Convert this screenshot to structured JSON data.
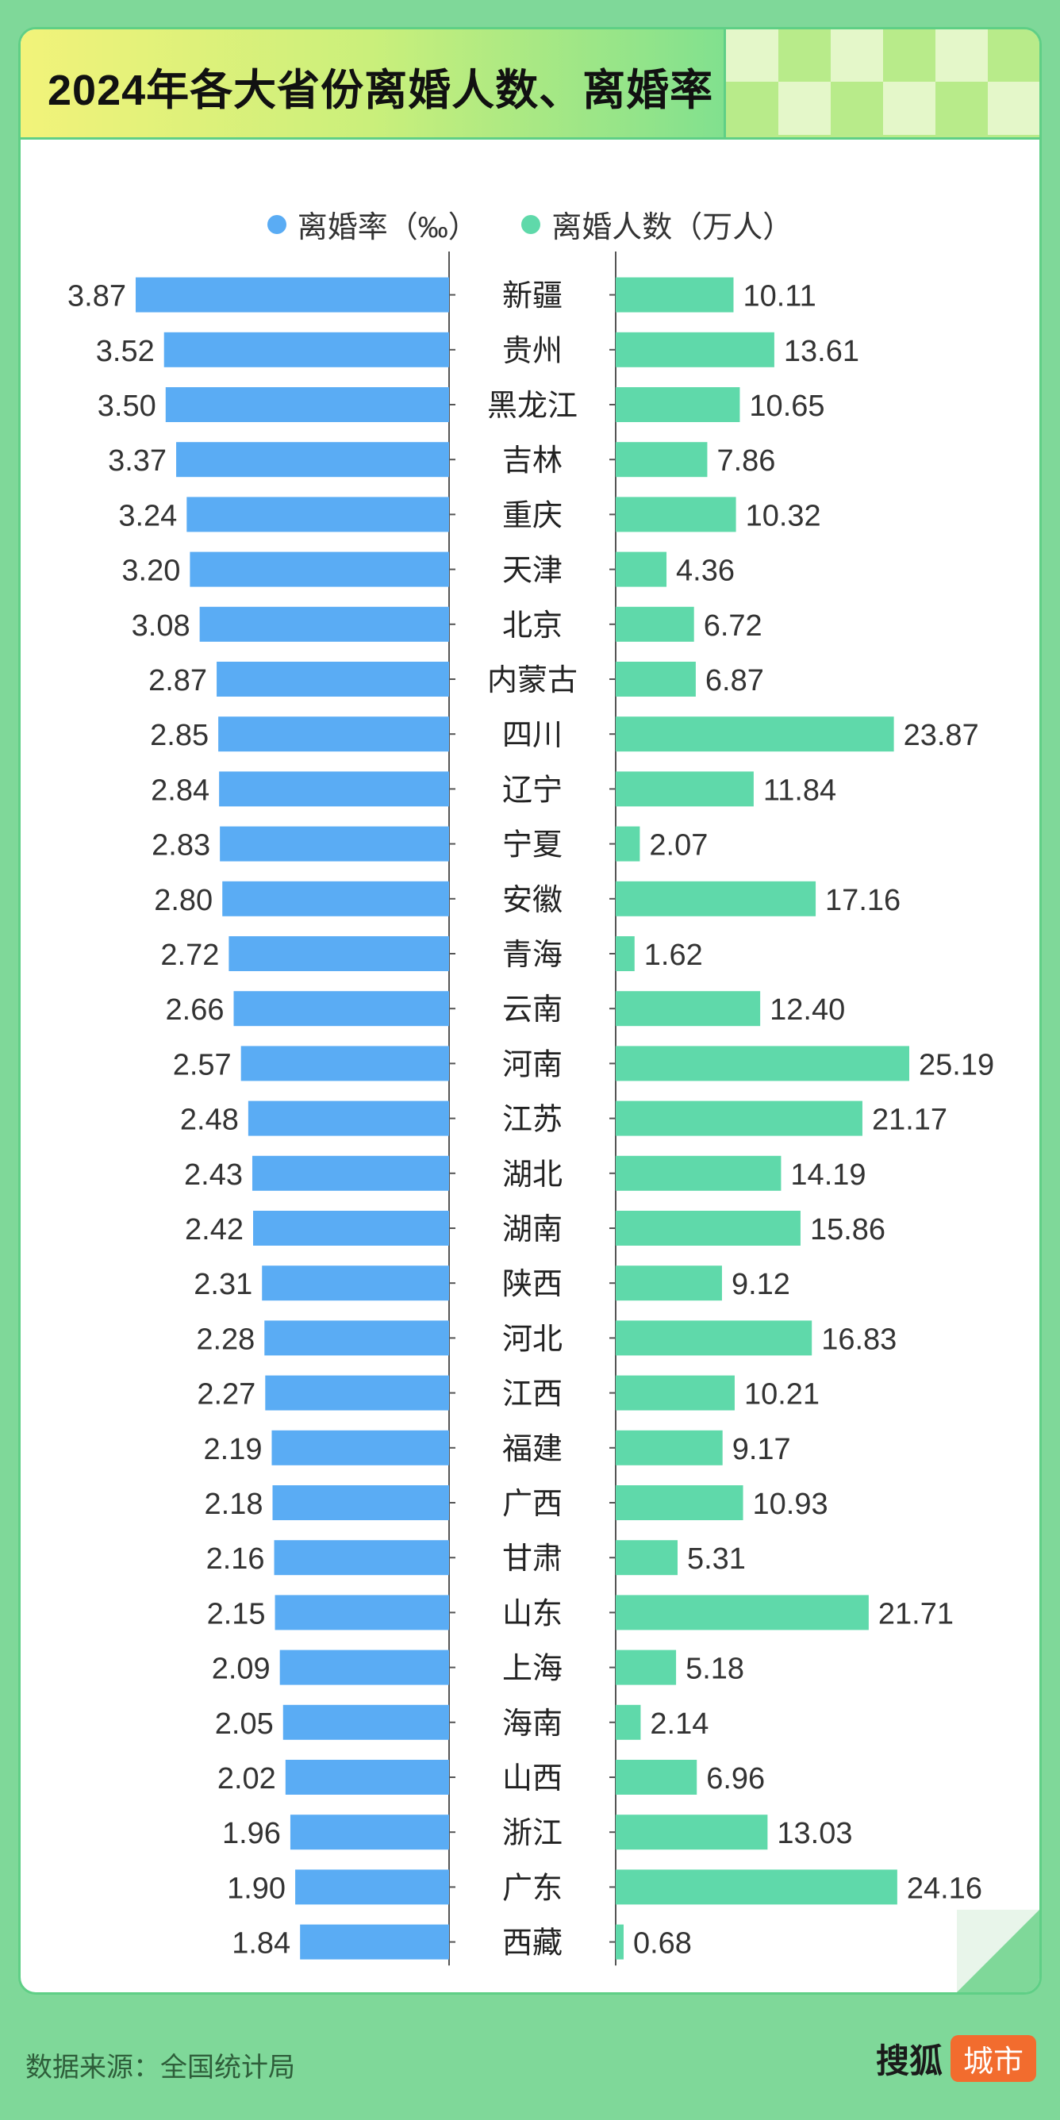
{
  "title": "2024年各大省份离婚人数、离婚率",
  "legend": {
    "rate_label": "离婚率（‰）",
    "count_label": "离婚人数（万人）"
  },
  "colors": {
    "rate": "#5aacf4",
    "count": "#5fd9aa",
    "background": "#7fd899",
    "accent": "#f26c2e"
  },
  "chart_data": {
    "type": "bar",
    "categories": [
      "新疆",
      "贵州",
      "黑龙江",
      "吉林",
      "重庆",
      "天津",
      "北京",
      "内蒙古",
      "四川",
      "辽宁",
      "宁夏",
      "安徽",
      "青海",
      "云南",
      "河南",
      "江苏",
      "湖北",
      "湖南",
      "陕西",
      "河北",
      "江西",
      "福建",
      "广西",
      "甘肃",
      "山东",
      "上海",
      "海南",
      "山西",
      "浙江",
      "广东",
      "西藏"
    ],
    "series": [
      {
        "name": "离婚率（‰）",
        "values": [
          "3.87",
          "3.52",
          "3.50",
          "3.37",
          "3.24",
          "3.20",
          "3.08",
          "2.87",
          "2.85",
          "2.84",
          "2.83",
          "2.80",
          "2.72",
          "2.66",
          "2.57",
          "2.48",
          "2.43",
          "2.42",
          "2.31",
          "2.28",
          "2.27",
          "2.19",
          "2.18",
          "2.16",
          "2.15",
          "2.09",
          "2.05",
          "2.02",
          "1.96",
          "1.90",
          "1.84"
        ]
      },
      {
        "name": "离婚人数（万人）",
        "values": [
          "10.11",
          "13.61",
          "10.65",
          "7.86",
          "10.32",
          "4.36",
          "6.72",
          "6.87",
          "23.87",
          "11.84",
          "2.07",
          "17.16",
          "1.62",
          "12.40",
          "25.19",
          "21.17",
          "14.19",
          "15.86",
          "9.12",
          "16.83",
          "10.21",
          "9.17",
          "10.93",
          "5.31",
          "21.71",
          "5.18",
          "2.14",
          "6.96",
          "13.03",
          "24.16",
          "0.68"
        ]
      }
    ],
    "legend_position": "top-center",
    "grid": false
  },
  "footer": {
    "source": "数据来源：全国统计局",
    "logo_main": "搜狐",
    "logo_tag": "城市"
  }
}
